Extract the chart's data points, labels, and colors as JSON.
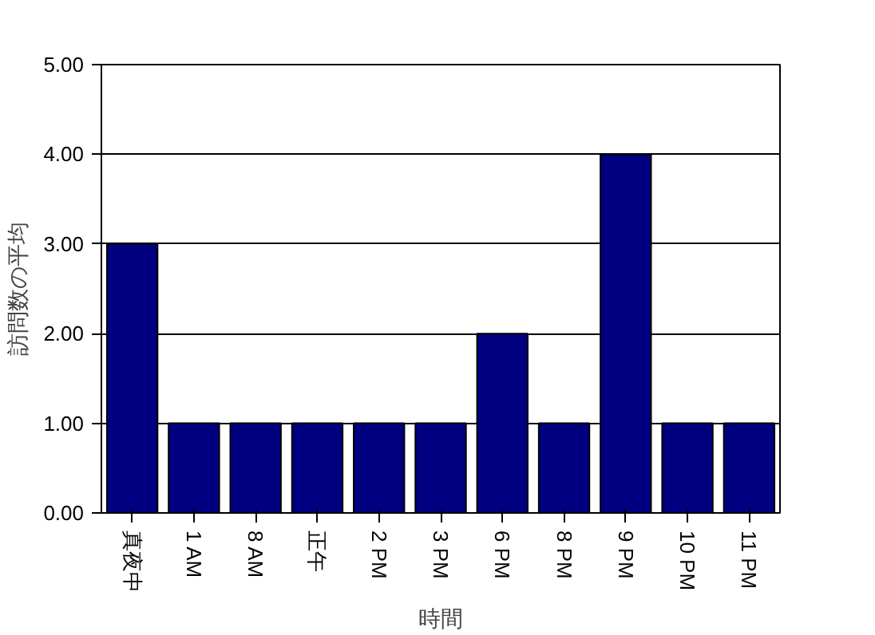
{
  "chart_data": {
    "type": "bar",
    "xlabel": "時間",
    "ylabel": "訪問数の平均",
    "categories": [
      "真夜中",
      "1 AM",
      "8 AM",
      "正午",
      "2 PM",
      "3 PM",
      "6 PM",
      "8 PM",
      "9 PM",
      "10 PM",
      "11 PM"
    ],
    "values": [
      3,
      1,
      1,
      1,
      1,
      1,
      2,
      1,
      4,
      1,
      1
    ],
    "color": "#000080",
    "ylim": [
      0,
      5
    ],
    "yticks": [
      {
        "value": 0,
        "label": "0.00"
      },
      {
        "value": 1,
        "label": "1.00"
      },
      {
        "value": 2,
        "label": "2.00"
      },
      {
        "value": 3,
        "label": "3.00"
      },
      {
        "value": 4,
        "label": "4.00"
      },
      {
        "value": 5,
        "label": "5.00"
      }
    ],
    "grid": "y"
  }
}
